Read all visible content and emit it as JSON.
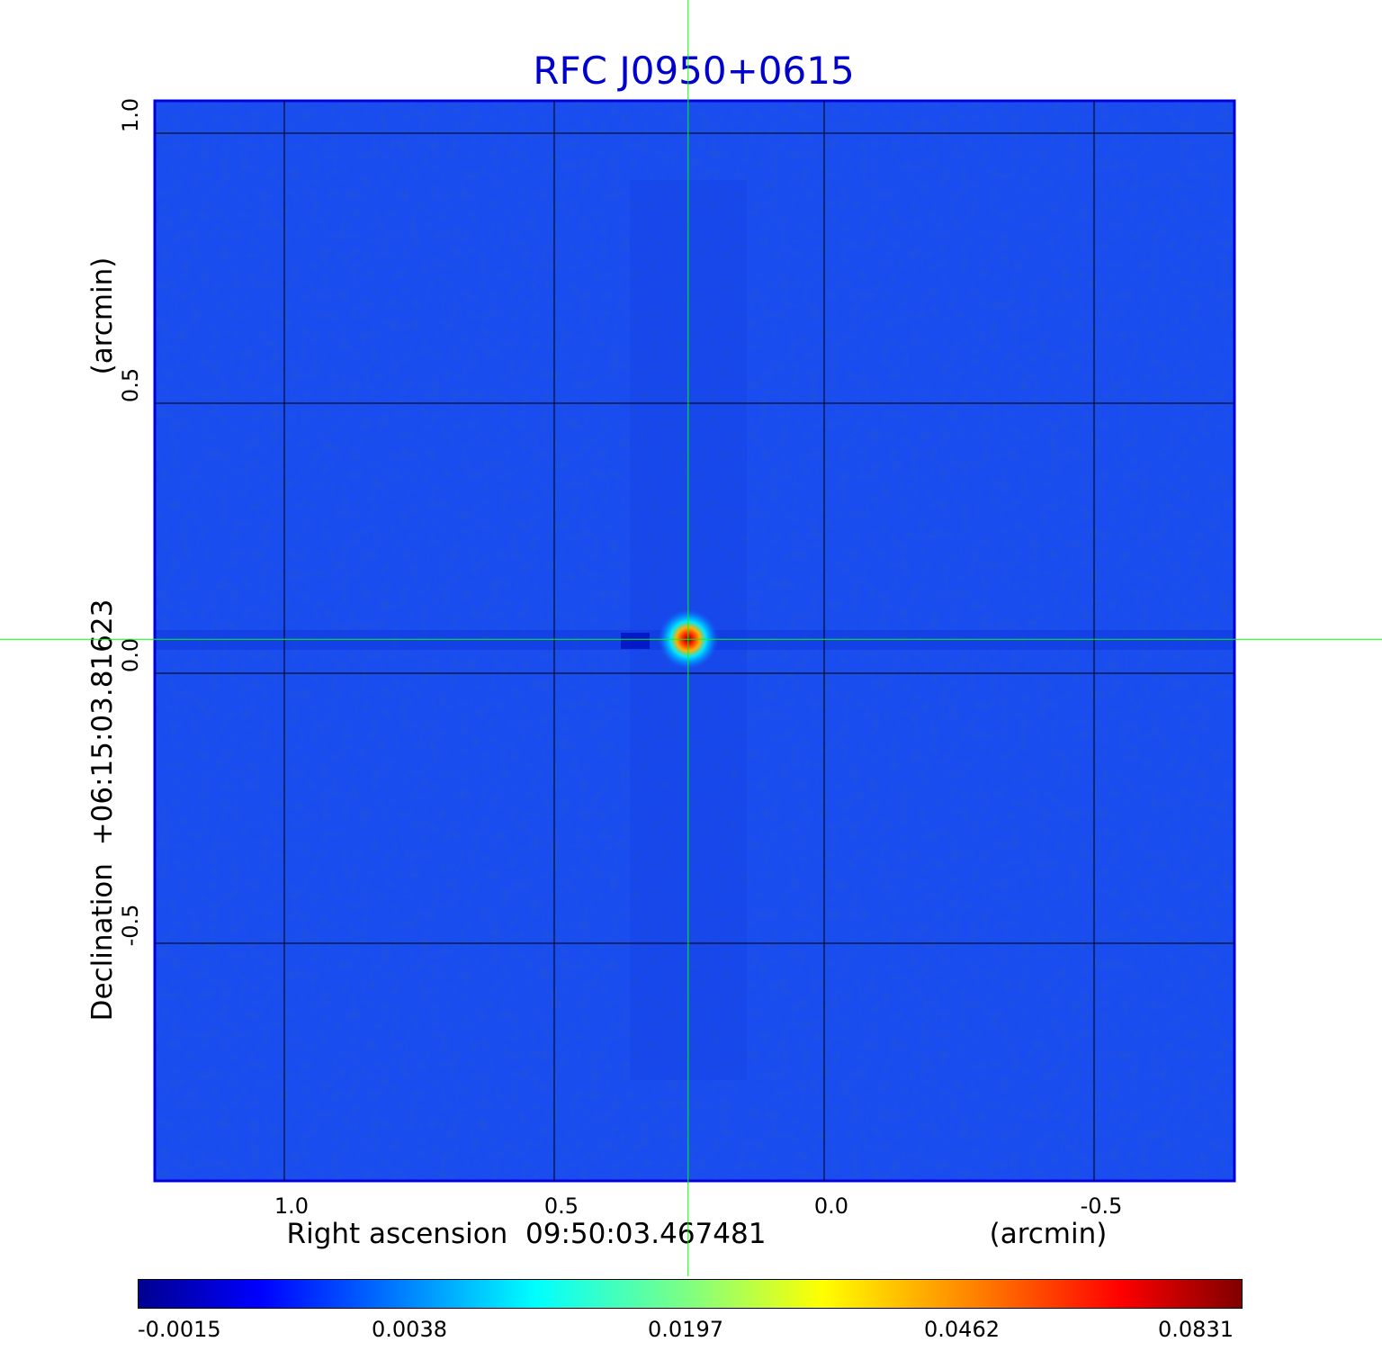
{
  "chart_data": {
    "type": "heatmap",
    "title": "RFC J0950+0615",
    "xlabel": "Right ascension  09:50:03.467481",
    "xlabel_unit": "(arcmin)",
    "ylabel": "Declination  +06:15:03.81623",
    "ylabel_unit": "(arcmin)",
    "x_ticks": [
      "1.0",
      "0.5",
      "0.0",
      "-0.5"
    ],
    "x_tick_values": [
      1.0,
      0.5,
      0.0,
      -0.5
    ],
    "xlim": [
      1.24,
      -0.76
    ],
    "y_ticks": [
      "1.0",
      "0.5",
      "0.0",
      "-0.5"
    ],
    "y_tick_values": [
      1.0,
      0.5,
      0.0,
      -0.5
    ],
    "ylim": [
      -0.94,
      1.06
    ],
    "grid": true,
    "colormap": "jet",
    "colorbar_ticks": [
      "-0.0015",
      "0.0038",
      "0.0197",
      "0.0462",
      "0.0831"
    ],
    "source": {
      "ra_offset": 0.252,
      "dec_offset": 0.063,
      "peak": 0.0831
    },
    "crosshair_color": "#00ff00",
    "title_color": "#0000cc",
    "background_color": "#1a4df0"
  }
}
